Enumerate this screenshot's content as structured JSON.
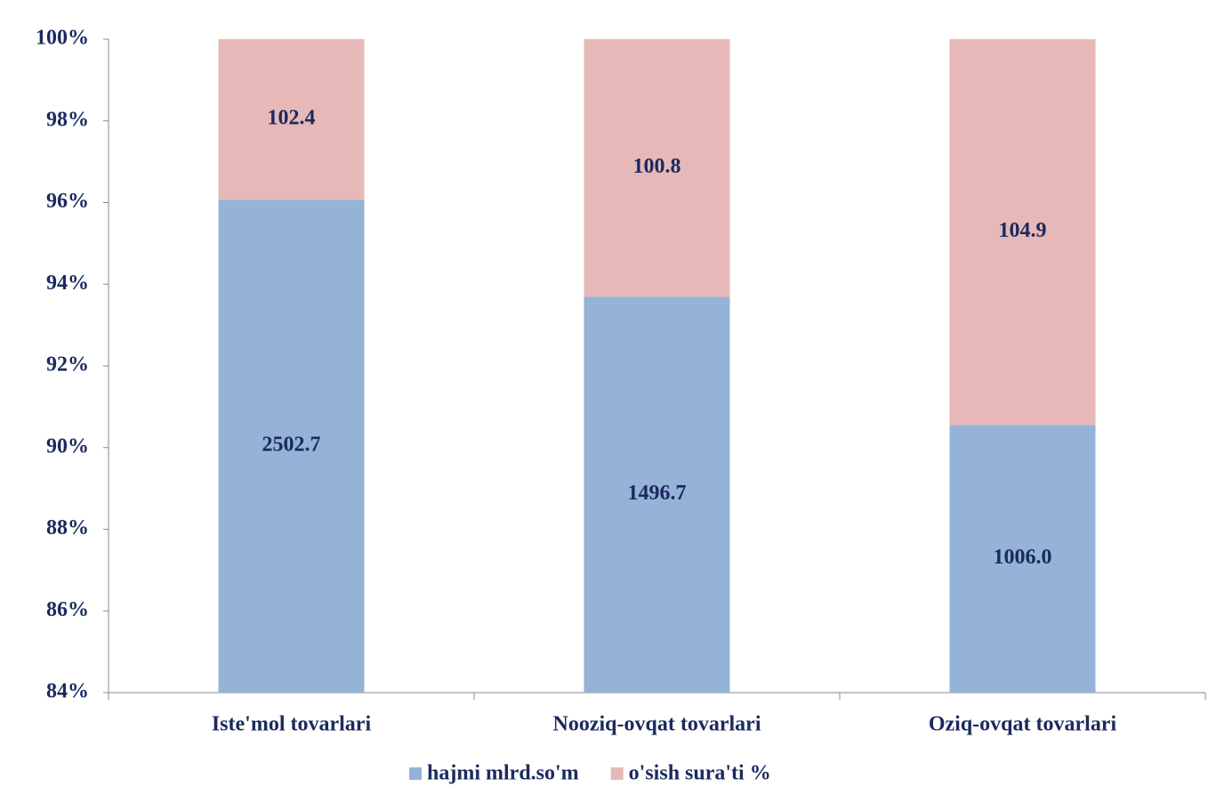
{
  "chart_data": {
    "type": "bar",
    "stacking": "percent",
    "categories": [
      "Iste'mol tovarlari",
      "Nooziq-ovqat tovarlari",
      "Oziq-ovqat tovarlari"
    ],
    "series": [
      {
        "name": "hajmi mlrd.so'm",
        "color": "#95b3d7",
        "values": [
          2502.7,
          1496.7,
          1006.0
        ],
        "value_labels": [
          "2502.7",
          "1496.7",
          "1006.0"
        ]
      },
      {
        "name": "o'sish sura'ti %",
        "color": "#e6b9b8",
        "values": [
          102.4,
          100.8,
          104.9
        ]
      }
    ],
    "ylim": [
      84,
      100
    ],
    "yticks": [
      {
        "value": 84,
        "label": "84%"
      },
      {
        "value": 86,
        "label": "86%"
      },
      {
        "value": 88,
        "label": "88%"
      },
      {
        "value": 90,
        "label": "90%"
      },
      {
        "value": 92,
        "label": "92%"
      },
      {
        "value": 94,
        "label": "94%"
      },
      {
        "value": 96,
        "label": "96%"
      },
      {
        "value": 98,
        "label": "98%"
      },
      {
        "value": 100,
        "label": "100%"
      }
    ],
    "legend": "bottom",
    "grid": false
  }
}
